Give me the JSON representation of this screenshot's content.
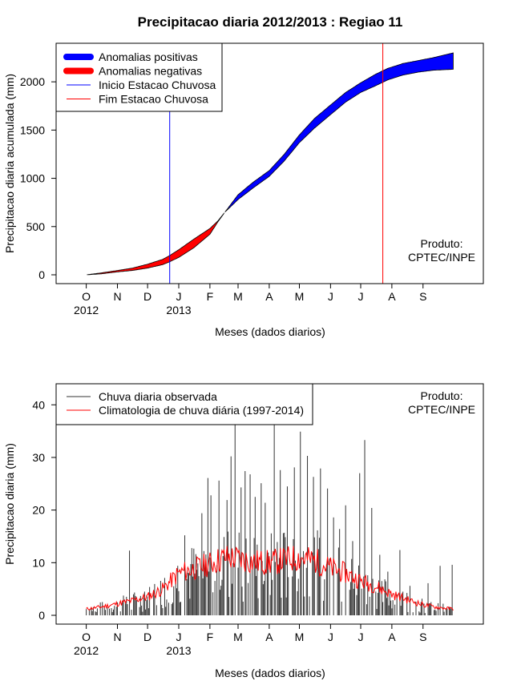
{
  "chart_data": [
    {
      "type": "area",
      "title": "Precipitacao diaria 2012/2013 : Regiao 11",
      "xlabel": "Meses (dados diarios)",
      "ylabel": "Precipitacao diaria acumulada (mm)",
      "ylim": [
        0,
        2300
      ],
      "yticks": [
        0,
        500,
        1000,
        1500,
        2000
      ],
      "xlim": [
        -30,
        395
      ],
      "month_ticks": [
        {
          "label": "O",
          "day": 0
        },
        {
          "label": "N",
          "day": 31
        },
        {
          "label": "D",
          "day": 61
        },
        {
          "label": "J",
          "day": 92
        },
        {
          "label": "F",
          "day": 123
        },
        {
          "label": "M",
          "day": 151
        },
        {
          "label": "A",
          "day": 182
        },
        {
          "label": "M",
          "day": 212
        },
        {
          "label": "J",
          "day": 243
        },
        {
          "label": "J",
          "day": 273
        },
        {
          "label": "A",
          "day": 304
        },
        {
          "label": "S",
          "day": 335
        }
      ],
      "year_labels": [
        {
          "label": "2012",
          "day": 0
        },
        {
          "label": "2013",
          "day": 92
        }
      ],
      "season_start_day": 83,
      "season_end_day": 295,
      "observed_cumulative": {
        "days": [
          0,
          15,
          31,
          46,
          61,
          76,
          83,
          92,
          107,
          123,
          131,
          138,
          151,
          166,
          182,
          197,
          212,
          227,
          243,
          258,
          273,
          288,
          300,
          315,
          330,
          345,
          365
        ],
        "values": [
          0,
          10,
          30,
          45,
          70,
          105,
          135,
          180,
          280,
          420,
          550,
          650,
          830,
          960,
          1080,
          1250,
          1450,
          1620,
          1760,
          1890,
          1990,
          2080,
          2140,
          2190,
          2220,
          2250,
          2300
        ]
      },
      "climatology_cumulative": {
        "days": [
          0,
          15,
          31,
          46,
          61,
          76,
          83,
          92,
          107,
          123,
          131,
          138,
          151,
          166,
          182,
          197,
          212,
          227,
          243,
          258,
          273,
          288,
          300,
          315,
          330,
          345,
          365
        ],
        "values": [
          0,
          20,
          45,
          70,
          110,
          160,
          200,
          260,
          370,
          480,
          560,
          650,
          780,
          900,
          1020,
          1180,
          1370,
          1520,
          1660,
          1790,
          1890,
          1960,
          2020,
          2070,
          2100,
          2120,
          2130
        ]
      },
      "legend": [
        {
          "label": "Anomalias positivas",
          "color": "#0000ff",
          "kind": "band"
        },
        {
          "label": "Anomalias negativas",
          "color": "#ff0000",
          "kind": "band"
        },
        {
          "label": "Inicio Estacao Chuvosa",
          "color": "#0000ff",
          "kind": "line"
        },
        {
          "label": "Fim Estacao Chuvosa",
          "color": "#ff0000",
          "kind": "line"
        }
      ],
      "note_lines": [
        "Produto:",
        "CPTEC/INPE"
      ]
    },
    {
      "type": "bar",
      "title": "",
      "xlabel": "Meses (dados diarios)",
      "ylabel": "Precipitacao diaria (mm)",
      "ylim": [
        0,
        44
      ],
      "yticks": [
        0,
        10,
        20,
        30,
        40
      ],
      "xlim": [
        -30,
        395
      ],
      "daily_peaks": [
        {
          "day": 43,
          "value": 12.3
        },
        {
          "day": 58,
          "value": 4.5
        },
        {
          "day": 78,
          "value": 7.1
        },
        {
          "day": 98,
          "value": 15.2
        },
        {
          "day": 115,
          "value": 19.4
        },
        {
          "day": 121,
          "value": 26.1
        },
        {
          "day": 124,
          "value": 22.8
        },
        {
          "day": 132,
          "value": 25.6
        },
        {
          "day": 140,
          "value": 21.9
        },
        {
          "day": 144,
          "value": 30.2
        },
        {
          "day": 148,
          "value": 36.5
        },
        {
          "day": 154,
          "value": 24.3
        },
        {
          "day": 158,
          "value": 27.4
        },
        {
          "day": 163,
          "value": 26.8
        },
        {
          "day": 168,
          "value": 22.5
        },
        {
          "day": 174,
          "value": 25.1
        },
        {
          "day": 178,
          "value": 21.4
        },
        {
          "day": 187,
          "value": 36.5
        },
        {
          "day": 193,
          "value": 27.6
        },
        {
          "day": 200,
          "value": 24.5
        },
        {
          "day": 207,
          "value": 28.1
        },
        {
          "day": 213,
          "value": 34.9
        },
        {
          "day": 220,
          "value": 30.3
        },
        {
          "day": 226,
          "value": 26.3
        },
        {
          "day": 233,
          "value": 27.9
        },
        {
          "day": 240,
          "value": 24.1
        },
        {
          "day": 246,
          "value": 18.6
        },
        {
          "day": 252,
          "value": 16.4
        },
        {
          "day": 258,
          "value": 20.9
        },
        {
          "day": 265,
          "value": 14.1
        },
        {
          "day": 272,
          "value": 27.0
        },
        {
          "day": 277,
          "value": 33.3
        },
        {
          "day": 284,
          "value": 20.4
        },
        {
          "day": 292,
          "value": 11.5
        },
        {
          "day": 300,
          "value": 8.3
        },
        {
          "day": 312,
          "value": 12.4
        },
        {
          "day": 322,
          "value": 5.6
        },
        {
          "day": 340,
          "value": 6.1
        },
        {
          "day": 352,
          "value": 9.4
        },
        {
          "day": 364,
          "value": 9.6
        }
      ],
      "climatology_daily": {
        "days": [
          0,
          15,
          31,
          46,
          61,
          76,
          92,
          107,
          123,
          138,
          151,
          166,
          182,
          197,
          212,
          227,
          243,
          258,
          273,
          288,
          304,
          319,
          335,
          350,
          365
        ],
        "values": [
          1.2,
          1.6,
          2.2,
          2.8,
          3.5,
          5.0,
          8.0,
          8.8,
          9.8,
          11.0,
          10.8,
          10.2,
          10.0,
          10.5,
          11.0,
          10.4,
          9.0,
          8.0,
          6.5,
          5.5,
          4.0,
          3.0,
          2.0,
          1.5,
          1.2
        ]
      },
      "legend": [
        {
          "label": "Chuva diaria observada",
          "color": "#333333",
          "kind": "line"
        },
        {
          "label": "Climatologia de chuva diária (1997-2014)",
          "color": "#ff0000",
          "kind": "line"
        }
      ],
      "note_lines": [
        "Produto:",
        "CPTEC/INPE"
      ]
    }
  ]
}
